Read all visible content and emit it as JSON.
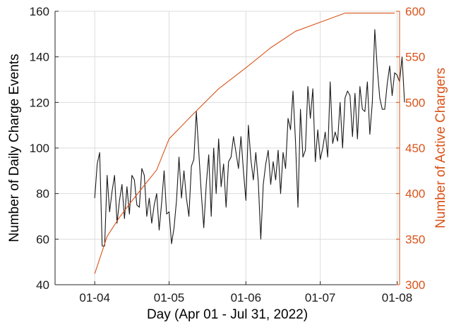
{
  "chart_data": {
    "type": "line",
    "xlabel": "Day (Apr 01 - Jul 31, 2022)",
    "x_range": [
      "2022-03-16",
      "2022-08-02"
    ],
    "x_ticks": [
      {
        "label": "01-04",
        "date": "2022-04-01"
      },
      {
        "label": "01-05",
        "date": "2022-05-01"
      },
      {
        "label": "01-06",
        "date": "2022-06-01"
      },
      {
        "label": "01-07",
        "date": "2022-07-01"
      },
      {
        "label": "01-08",
        "date": "2022-08-01"
      }
    ],
    "grid": true,
    "y_left": {
      "label": "Number of Daily Charge Events",
      "range": [
        40,
        160
      ],
      "ticks": [
        "40",
        "60",
        "80",
        "100",
        "120",
        "140",
        "160"
      ],
      "color": "#000000"
    },
    "y_right": {
      "label": "Number of Active Chargers",
      "range": [
        300,
        600
      ],
      "ticks": [
        "300",
        "350",
        "400",
        "450",
        "500",
        "550",
        "600"
      ],
      "color": "#d95319"
    },
    "series": [
      {
        "axis": "left",
        "color": "#1a1a1a",
        "start_date": "2022-04-01",
        "values": [
          78,
          93,
          98,
          57,
          57,
          88,
          72,
          81,
          88,
          67,
          77,
          84,
          69,
          83,
          71,
          88,
          86,
          75,
          74,
          91,
          88,
          70,
          78,
          67,
          75,
          80,
          64,
          76,
          90,
          71,
          72,
          58,
          65,
          77,
          96,
          78,
          90,
          78,
          70,
          92,
          95,
          116,
          98,
          80,
          65,
          84,
          97,
          70,
          100,
          80,
          104,
          83,
          93,
          74,
          94,
          96,
          105,
          98,
          91,
          105,
          90,
          77,
          110,
          95,
          86,
          98,
          85,
          60,
          84,
          93,
          99,
          84,
          94,
          86,
          99,
          80,
          98,
          91,
          113,
          108,
          125,
          103,
          74,
          117,
          96,
          99,
          127,
          113,
          126,
          94,
          108,
          95,
          100,
          107,
          96,
          129,
          102,
          107,
          103,
          120,
          100,
          122,
          125,
          123,
          105,
          124,
          104,
          127,
          117,
          116,
          129,
          106,
          120,
          152,
          135,
          122,
          117,
          117,
          128,
          136,
          123,
          133,
          132,
          129,
          140,
          120
        ]
      },
      {
        "axis": "right",
        "color": "#d95319",
        "points": [
          {
            "date": "2022-04-01",
            "value": 312
          },
          {
            "date": "2022-04-06",
            "value": 353
          },
          {
            "date": "2022-04-11",
            "value": 374
          },
          {
            "date": "2022-04-16",
            "value": 392
          },
          {
            "date": "2022-04-21",
            "value": 409
          },
          {
            "date": "2022-04-26",
            "value": 426
          },
          {
            "date": "2022-05-01",
            "value": 460
          },
          {
            "date": "2022-05-11",
            "value": 488
          },
          {
            "date": "2022-05-21",
            "value": 515
          },
          {
            "date": "2022-06-01",
            "value": 538
          },
          {
            "date": "2022-06-11",
            "value": 560
          },
          {
            "date": "2022-06-21",
            "value": 578
          },
          {
            "date": "2022-07-01",
            "value": 588
          },
          {
            "date": "2022-07-11",
            "value": 598
          },
          {
            "date": "2022-07-21",
            "value": 598
          },
          {
            "date": "2022-07-31",
            "value": 598
          }
        ]
      }
    ]
  }
}
